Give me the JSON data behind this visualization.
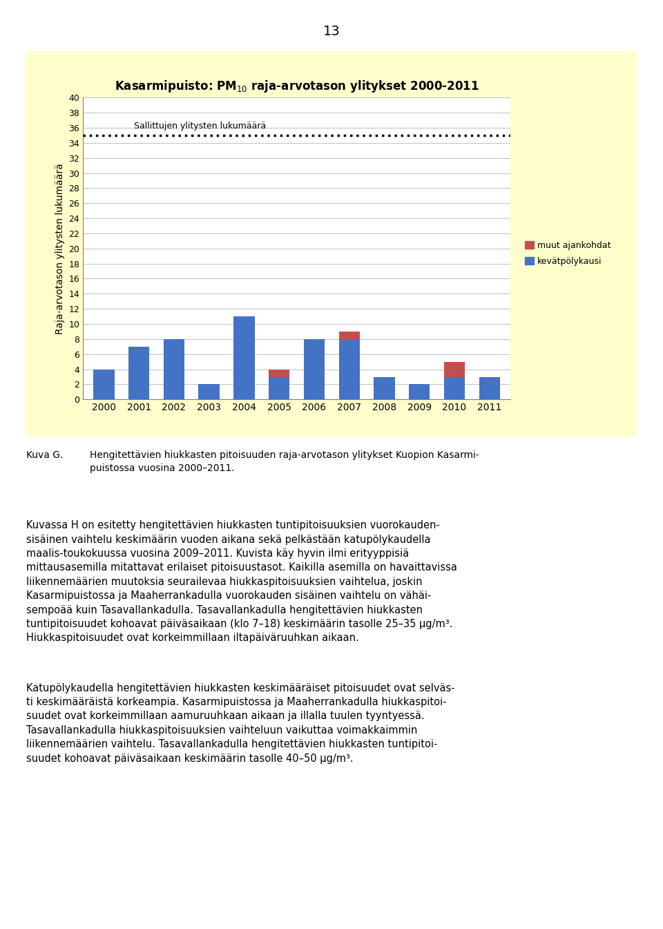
{
  "title": "Kasarmipuisto: PM$_{10}$ raja-arvotason ylitykset 2000-2011",
  "ylabel": "Raja-arvotason ylitysten lukumäärä",
  "years": [
    2000,
    2001,
    2002,
    2003,
    2004,
    2005,
    2006,
    2007,
    2008,
    2009,
    2010,
    2011
  ],
  "blue_values": [
    4,
    7,
    8,
    2,
    11,
    3,
    8,
    8,
    3,
    2,
    3,
    3
  ],
  "red_values": [
    0,
    0,
    0,
    0,
    0,
    1,
    0,
    1,
    0,
    0,
    2,
    0
  ],
  "blue_color": "#4472C4",
  "red_color": "#C0504D",
  "dotted_line_y": 35,
  "dotted_line_label": "Sallittujen ylitysten lukumäärä",
  "legend_muut": "muut ajankohdat",
  "legend_kevat": "kevätpölykausi",
  "ylim": [
    0,
    40
  ],
  "yticks": [
    0,
    2,
    4,
    6,
    8,
    10,
    12,
    14,
    16,
    18,
    20,
    22,
    24,
    26,
    28,
    30,
    32,
    34,
    36,
    38,
    40
  ],
  "chart_bg": "#FFFFCC",
  "plot_bg": "#FFFFFF",
  "page_bg": "#FFFFFF",
  "page_number": "13",
  "caption_label": "Kuva G.",
  "caption_text": "Hengitettävien hiukkasten pitoisuuden raja-arvotason ylitykset Kuopion Kasarmi-\npuistossa vuosina 2000–2011.",
  "body1": "Kuvassa H on esitetty hengitettävien hiukkasten tuntipitoisuuksien vuorokauden-\nsisäinen vaihtelu keskimäärin vuoden aikana sekä pelkästään katupölykaudella\nmaalis-toukokuussa vuosina 2009–2011. Kuvista käy hyvin ilmi erityyppisiä\nmittausasemilla mitattavat erilaiset pitoisuustasot. Kaikilla asemilla on havaittavissa\nliikennemäärien muutoksia seurailevaa hiukkaspitoisuuksien vaihtelua, joskin\nKasarmipuistossa ja Maaherrankadulla vuorokauden sisäinen vaihtelu on vähäi-\nsempoää kuin Tasavallankadulla. Tasavallankadulla hengitettävien hiukkasten\ntuntipitoisuudet kohoavat päiväsaikaan (klo 7–18) keskimäärin tasolle 25–35 μg/m³.\nHiukkaspitoisuudet ovat korkeimmillaan iltapäiväruuhkan aikaan.",
  "body2": "Katupölykaudella hengitettävien hiukkasten keskimääräiset pitoisuudet ovat selväs-\nti keskimääräistä korkeampia. Kasarmipuistossa ja Maaherrankadulla hiukkaspitoi-\nsuudet ovat korkeimmillaan aamuruuhkaan aikaan ja illalla tuulen tyyntyessä.\nTasavallankadulla hiukkaspitoisuuksien vaihteluun vaikuttaa voimakkaimmin\nliikennemäärien vaihtelu. Tasavallankadulla hengitettävien hiukkasten tuntipitoi-\nsuudet kohoavat päiväsaikaan keskimäärin tasolle 40–50 μg/m³."
}
